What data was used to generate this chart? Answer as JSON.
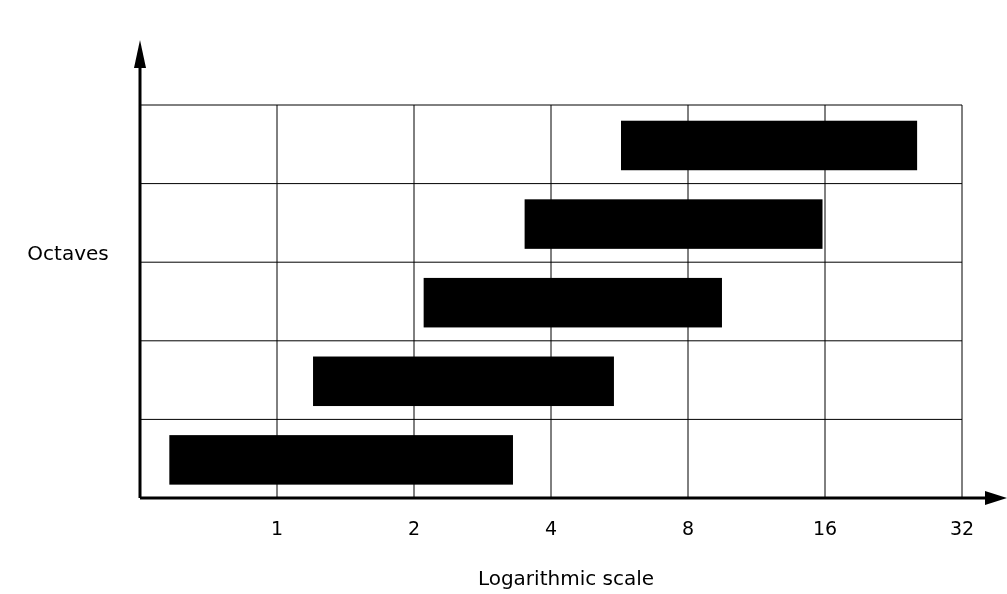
{
  "chart_data": {
    "type": "bar",
    "orientation": "horizontal",
    "categories": [
      null,
      null,
      null,
      null,
      null
    ],
    "base": [
      5.7,
      3.5,
      2.1,
      1.2,
      0.58
    ],
    "values": [
      19.8,
      12.3,
      7.4,
      4.3,
      2.72
    ],
    "color": "#000000",
    "xlabel": "Logarithmic scale",
    "ylabel": "Octaves",
    "log": "x",
    "xlim": [
      0.5,
      32
    ],
    "xticks": [
      1,
      2,
      4,
      8,
      16,
      32
    ],
    "grid": true
  }
}
